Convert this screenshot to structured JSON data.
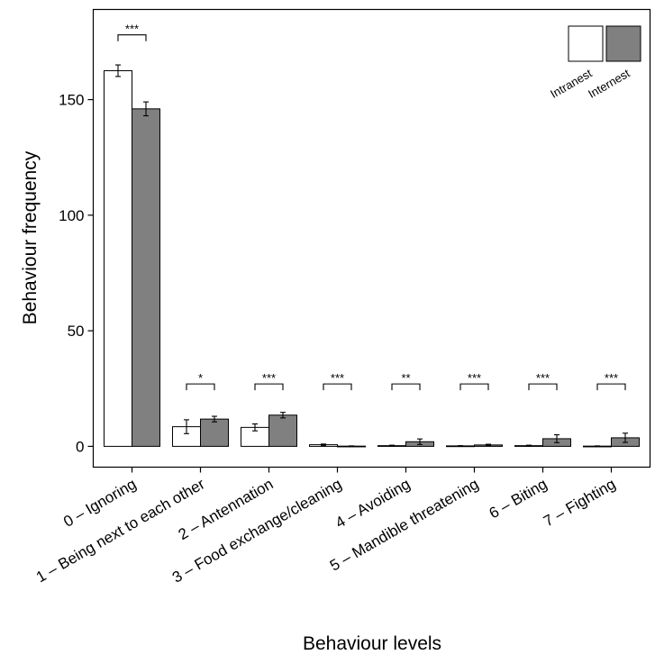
{
  "chart_data": {
    "type": "bar",
    "xlabel": "Behaviour levels",
    "ylabel": "Behaviour frequency",
    "ylim": [
      -9,
      189
    ],
    "yticks": [
      0,
      50,
      100,
      150
    ],
    "grid": false,
    "legend_position": "top-right",
    "categories": [
      "0 – Ignoring",
      "1 – Being next to each other",
      "2 – Antennation",
      "3 – Food exchange/cleaning",
      "4 – Avoiding",
      "5 – Mandible threatening",
      "6 – Biting",
      "7 – Fighting"
    ],
    "series": [
      {
        "name": "Intranest",
        "color": "#ffffff",
        "values": [
          162.5,
          8.5,
          8.2,
          0.7,
          0.3,
          0.2,
          0.3,
          0.1
        ],
        "errors": [
          2.5,
          3.0,
          1.5,
          0.3,
          0.2,
          0.1,
          0.2,
          0.1
        ]
      },
      {
        "name": "Internest",
        "color": "#808080",
        "values": [
          146.0,
          11.8,
          13.5,
          0.1,
          2.0,
          0.6,
          3.3,
          3.7
        ],
        "errors": [
          3.0,
          1.2,
          1.2,
          0.1,
          1.2,
          0.3,
          1.7,
          2.0
        ]
      }
    ],
    "significance": [
      "***",
      "*",
      "***",
      "***",
      "**",
      "***",
      "***",
      "***"
    ]
  }
}
